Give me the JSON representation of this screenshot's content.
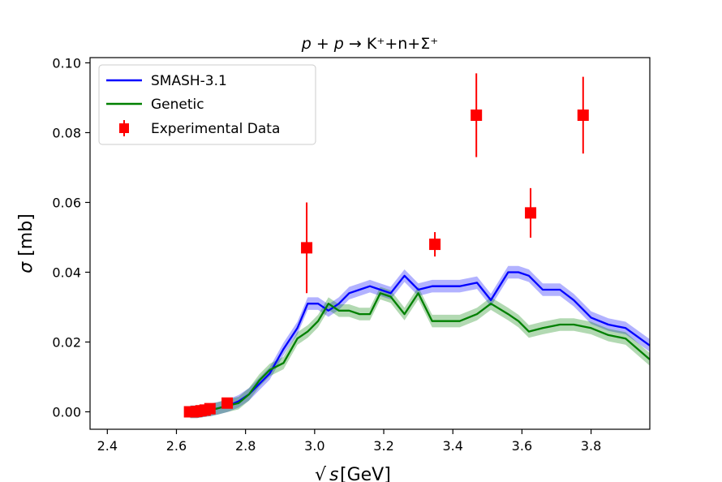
{
  "chart_data": {
    "type": "line",
    "title": "p + p → K⁺+n+Σ⁺",
    "title_parts": {
      "p1": "p",
      "op1": " + ",
      "p2": "p",
      "rest": " → K⁺+n+Σ⁺"
    },
    "xlabel": "√s [GeV]",
    "xlabel_parts": {
      "sym": "s",
      "unit": " [GeV]"
    },
    "ylabel": "σ [mb]",
    "ylabel_parts": {
      "sym": "σ",
      "unit": " [mb]"
    },
    "xlim": [
      2.35,
      3.97
    ],
    "ylim": [
      -0.005,
      0.1015
    ],
    "xticks": [
      2.4,
      2.6,
      2.8,
      3.0,
      3.2,
      3.4,
      3.6,
      3.8
    ],
    "xtick_labels": [
      "2.4",
      "2.6",
      "2.8",
      "3.0",
      "3.2",
      "3.4",
      "3.6",
      "3.8"
    ],
    "yticks": [
      0.0,
      0.02,
      0.04,
      0.06,
      0.08,
      0.1
    ],
    "ytick_labels": [
      "0.00",
      "0.02",
      "0.04",
      "0.06",
      "0.08",
      "0.10"
    ],
    "grid": false,
    "legend_position": "top-left",
    "legend": [
      "SMASH-3.1",
      "Genetic",
      "Experimental Data"
    ],
    "band_halfwidth": 0.0018,
    "series": [
      {
        "name": "SMASH-3.1",
        "color": "#0000ff",
        "x": [
          2.64,
          2.66,
          2.68,
          2.7,
          2.72,
          2.75,
          2.78,
          2.81,
          2.84,
          2.87,
          2.91,
          2.95,
          2.98,
          3.01,
          3.04,
          3.07,
          3.1,
          3.13,
          3.16,
          3.19,
          3.22,
          3.26,
          3.3,
          3.34,
          3.38,
          3.42,
          3.47,
          3.51,
          3.56,
          3.59,
          3.62,
          3.66,
          3.71,
          3.75,
          3.8,
          3.85,
          3.9,
          3.97
        ],
        "values": [
          0.0,
          0.0,
          0.0003,
          0.0006,
          0.001,
          0.0018,
          0.003,
          0.005,
          0.008,
          0.011,
          0.018,
          0.024,
          0.031,
          0.031,
          0.029,
          0.031,
          0.034,
          0.035,
          0.036,
          0.035,
          0.034,
          0.039,
          0.035,
          0.036,
          0.036,
          0.036,
          0.037,
          0.032,
          0.04,
          0.04,
          0.039,
          0.035,
          0.035,
          0.032,
          0.027,
          0.025,
          0.024,
          0.019
        ]
      },
      {
        "name": "Genetic",
        "color": "#008000",
        "x": [
          2.64,
          2.66,
          2.68,
          2.7,
          2.72,
          2.75,
          2.78,
          2.81,
          2.84,
          2.87,
          2.91,
          2.95,
          2.98,
          3.01,
          3.04,
          3.07,
          3.1,
          3.13,
          3.16,
          3.19,
          3.22,
          3.26,
          3.3,
          3.34,
          3.38,
          3.42,
          3.47,
          3.51,
          3.56,
          3.59,
          3.62,
          3.66,
          3.71,
          3.75,
          3.8,
          3.85,
          3.9,
          3.97
        ],
        "values": [
          0.0,
          0.0,
          0.0003,
          0.0006,
          0.001,
          0.0018,
          0.0025,
          0.005,
          0.009,
          0.012,
          0.014,
          0.021,
          0.023,
          0.026,
          0.031,
          0.029,
          0.029,
          0.028,
          0.028,
          0.034,
          0.033,
          0.028,
          0.034,
          0.026,
          0.026,
          0.026,
          0.028,
          0.031,
          0.028,
          0.026,
          0.023,
          0.024,
          0.025,
          0.025,
          0.024,
          0.022,
          0.021,
          0.015
        ]
      }
    ],
    "experimental": {
      "name": "Experimental Data",
      "color": "#ff0000",
      "x": [
        2.638,
        2.648,
        2.659,
        2.671,
        2.683,
        2.697,
        2.747,
        2.977,
        3.348,
        3.468,
        3.625,
        3.777
      ],
      "values": [
        0.0,
        0.0,
        0.0001,
        0.0003,
        0.0005,
        0.0009,
        0.0025,
        0.047,
        0.048,
        0.085,
        0.057,
        0.085
      ],
      "errors": [
        0.0,
        0.0,
        0.0,
        0.0,
        0.0,
        0.0,
        0.0,
        0.013,
        0.0035,
        0.012,
        0.0071,
        0.011
      ]
    }
  }
}
